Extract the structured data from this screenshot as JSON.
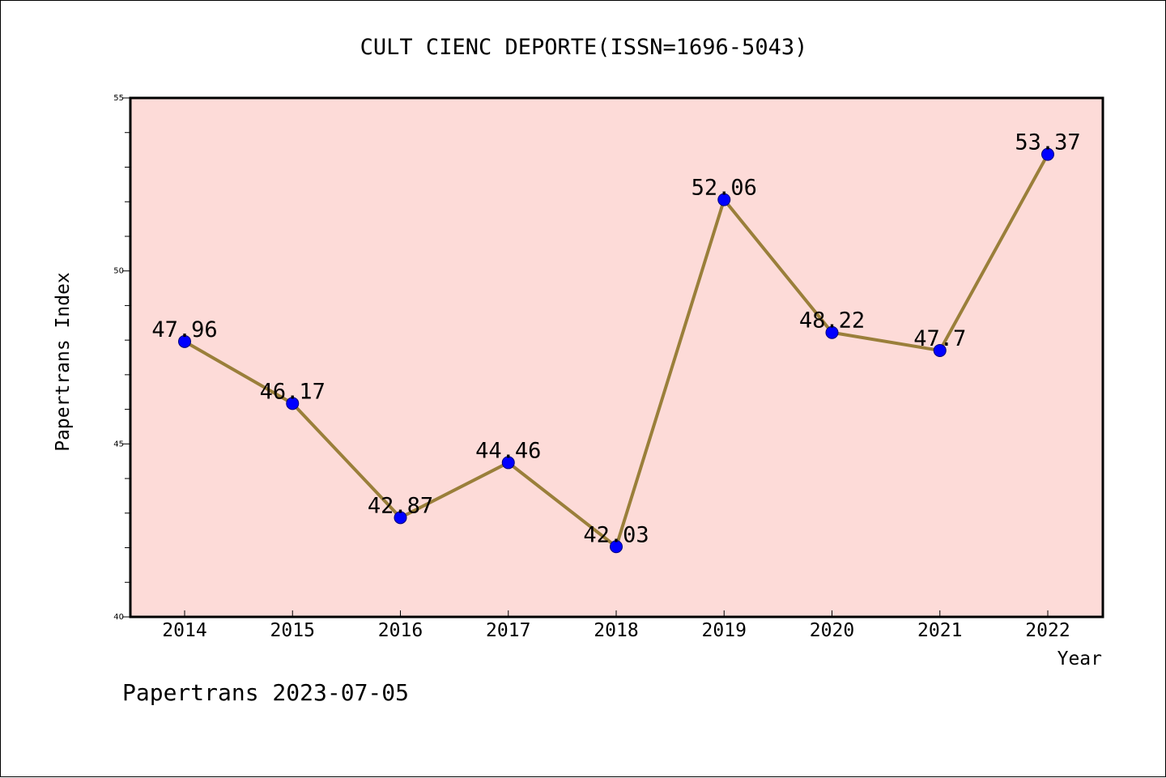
{
  "chart_data": {
    "type": "line",
    "title": "CULT CIENC DEPORTE(ISSN=1696-5043)",
    "xlabel": "Year",
    "ylabel": "Papertrans Index",
    "footer": "Papertrans 2023-07-05",
    "x": [
      "2014",
      "2015",
      "2016",
      "2017",
      "2018",
      "2019",
      "2020",
      "2021",
      "2022"
    ],
    "series": [
      {
        "values": [
          47.96,
          46.17,
          42.87,
          44.46,
          42.03,
          52.06,
          48.22,
          47.7,
          53.37
        ],
        "labels": [
          "47.96",
          "46.17",
          "42.87",
          "44.46",
          "42.03",
          "52.06",
          "48.22",
          "47.7",
          "53.37"
        ]
      }
    ],
    "ylim": [
      40,
      55
    ],
    "yticks": [
      "40",
      "45",
      "50",
      "55"
    ],
    "grid": false,
    "colors": {
      "plot_background": "#fddbd8",
      "line": "#9a7f3a",
      "marker": "#0000ff"
    }
  }
}
